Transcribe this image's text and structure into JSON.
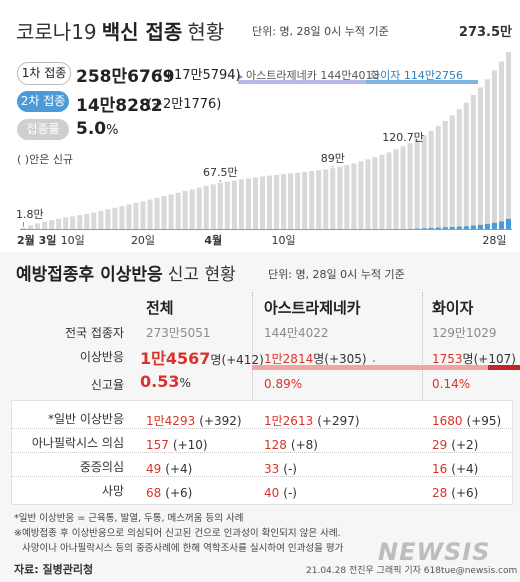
{
  "header": {
    "title_light_1": "코로나19",
    "title_bold": "백신 접종",
    "title_light_2": "현황",
    "unit_note": "단위: 명, 28일 0시 누적 기준"
  },
  "summary": {
    "dose1": {
      "label": "1차 접종",
      "value": "258만6769",
      "delta": "(+17만5794)"
    },
    "dose2": {
      "label": "2차 접종",
      "value": "14만8282",
      "delta": "(+2만1776)"
    },
    "rate": {
      "label": "접종률",
      "value": "5.0",
      "unit": "%"
    },
    "legend_az": "아스트라제네카 144만4013",
    "legend_pf": "화이자 114만2756",
    "new_note": "( )안은 신규"
  },
  "chart_data": {
    "type": "bar",
    "title": "",
    "xlabel": "",
    "ylabel": "",
    "ylim": [
      0,
      273.5
    ],
    "x_tick_labels": [
      "2월 3일",
      "10일",
      "20일",
      "4월",
      "10일",
      "28일"
    ],
    "annotations": [
      "1.8만",
      "67.5만",
      "89만",
      "120.7만",
      "273.5만"
    ],
    "series": [
      {
        "name": "1차 접종",
        "color": "#d9d9d9",
        "values": [
          1.8,
          5.5,
          8.2,
          10.5,
          12.8,
          15.0,
          17.0,
          18.5,
          20.3,
          22.0,
          24.2,
          26.5,
          28.8,
          31.0,
          33.5,
          36.0,
          38.2,
          40.5,
          43.0,
          45.5,
          48.0,
          50.5,
          53.0,
          55.5,
          58.0,
          60.5,
          63.0,
          65.3,
          67.5,
          69.2,
          71.0,
          72.6,
          74.0,
          75.4,
          76.8,
          78.0,
          79.2,
          80.3,
          81.4,
          82.5,
          83.6,
          84.8,
          86.0,
          87.2,
          89.0,
          91.0,
          93.5,
          96.0,
          99.0,
          102.0,
          105.0,
          108.5,
          112.0,
          116.5,
          120.7,
          125.5,
          131.0,
          137.0,
          143.5,
          150.5,
          158.0,
          166.0,
          175.0,
          185.0,
          196.0,
          207.0,
          219.0,
          232.0,
          245.0,
          258.7
        ]
      },
      {
        "name": "2차 접종",
        "color": "#4a9bd7",
        "values": [
          0,
          0,
          0,
          0,
          0,
          0,
          0,
          0,
          0,
          0,
          0,
          0,
          0,
          0,
          0,
          0,
          0,
          0,
          0,
          0,
          0,
          0,
          0,
          0,
          0,
          0,
          0,
          0,
          0,
          0,
          0,
          0,
          0,
          0,
          0,
          0,
          0,
          0,
          0,
          0,
          0,
          0,
          0,
          0,
          0,
          0,
          0,
          0,
          0,
          0,
          0,
          0,
          0,
          0,
          0,
          0,
          0.5,
          1.0,
          1.5,
          2.0,
          2.5,
          3.0,
          3.5,
          4.0,
          5.0,
          6.0,
          7.5,
          9.0,
          11.0,
          14.8
        ]
      }
    ],
    "markers": [
      {
        "label": "1.8만",
        "index": 0,
        "value": 1.8
      },
      {
        "label": "67.5만",
        "index": 28,
        "value": 67.5
      },
      {
        "label": "89만",
        "index": 44,
        "value": 89.0
      },
      {
        "label": "120.7만",
        "index": 54,
        "value": 120.7
      },
      {
        "label": "273.5만",
        "index": 69,
        "value": 273.5
      }
    ]
  },
  "adverse": {
    "title_bold": "예방접종후 이상반응",
    "title_light": "신고 현황",
    "unit_note": "단위: 명, 28일 0시 누적 기준",
    "columns": [
      "전체",
      "아스트라제네카",
      "화이자"
    ],
    "rows": {
      "vaccinated": {
        "label": "전국 접종자",
        "total": "273만5051",
        "az": "144만4022",
        "pf": "129만1029"
      },
      "reports": {
        "label": "이상반응",
        "total": {
          "value": "1만4567",
          "unit": "명",
          "delta": "(+412)"
        },
        "az": {
          "value": "1만2814",
          "unit": "명",
          "delta": "(+305)"
        },
        "pf": {
          "value": "1753",
          "unit": "명",
          "delta": "(+107)"
        }
      },
      "rate": {
        "label": "신고율",
        "total": {
          "value": "0.53",
          "unit": "%"
        },
        "az": "0.89%",
        "pf": "0.14%",
        "az_fraction": 0.89,
        "pf_fraction": 0.14
      }
    },
    "detail": [
      {
        "label": "*일반 이상반응",
        "total": "1만4293",
        "total_d": "(+392)",
        "az": "1만2613",
        "az_d": "(+297)",
        "pf": "1680",
        "pf_d": "(+95)"
      },
      {
        "label": "아나필락시스 의심",
        "total": "157",
        "total_d": "(+10)",
        "az": "128",
        "az_d": "(+8)",
        "pf": "29",
        "pf_d": "(+2)"
      },
      {
        "label": "중증의심",
        "total": "49",
        "total_d": "(+4)",
        "az": "33",
        "az_d": "(-)",
        "pf": "16",
        "pf_d": "(+4)"
      },
      {
        "label": "사망",
        "total": "68",
        "total_d": "(+6)",
        "az": "40",
        "az_d": "(-)",
        "pf": "28",
        "pf_d": "(+6)"
      }
    ]
  },
  "footer": {
    "note1": "*일반 이상반응 = 근육통, 발열, 두통, 메스꺼움 등의 사례",
    "note2": "※예방접종 후 이상반응으로 의심되어 신고된 건으로 인과성이 확인되지 않은 사례.",
    "note3": "사망이나 아나필락시스 등의 중증사례에 한해 역학조사를 실시하여 인과성을 평가",
    "source": "자료: 질병관리청",
    "credit": "21.04.28 전진우 그래픽 기자 618tue@newsis.com",
    "brand": "NEWSIS"
  }
}
